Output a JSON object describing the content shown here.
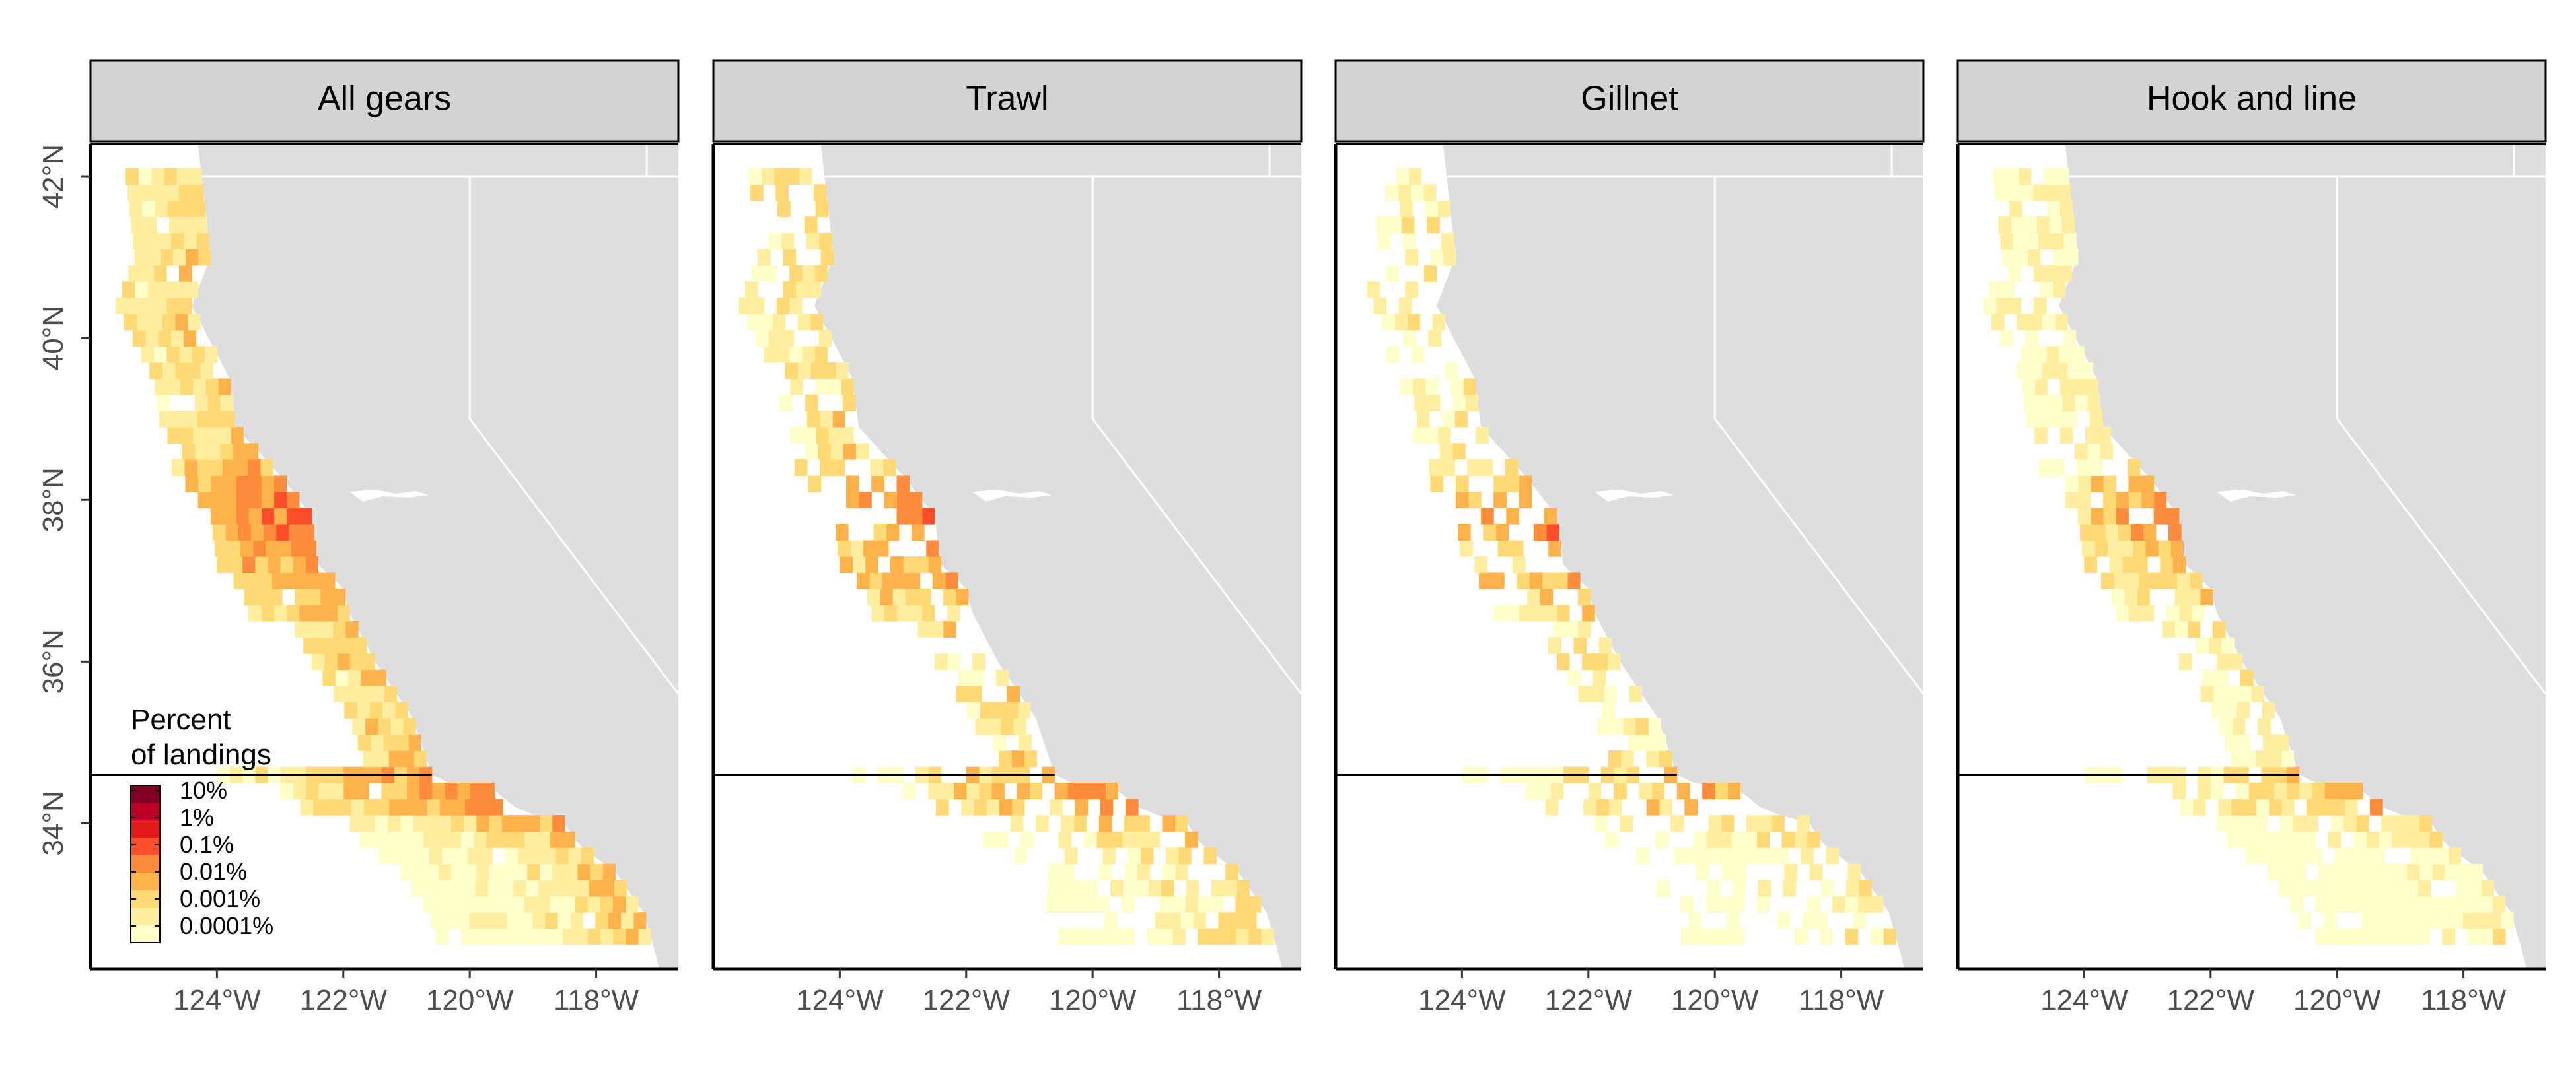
{
  "map": {
    "panels": [
      {
        "title": "All gears"
      },
      {
        "title": "Trawl"
      },
      {
        "title": "Gillnet"
      },
      {
        "title": "Hook and line"
      }
    ],
    "x_ticks": [
      "124°W",
      "122°W",
      "120°W",
      "118°W"
    ],
    "y_ticks": [
      "42°N",
      "40°N",
      "38°N",
      "36°N",
      "34°N"
    ],
    "x_tick_values": [
      -124,
      -122,
      -120,
      -118
    ],
    "y_tick_values": [
      42,
      40,
      38,
      36,
      34
    ],
    "extent": {
      "lon": [
        -126,
        -116.7
      ],
      "lat": [
        32.2,
        42.4
      ]
    },
    "reference_line_lat": 34.6,
    "legend": {
      "title_line1": "Percent",
      "title_line2": "of landings",
      "labels": [
        "10%",
        "1%",
        "0.1%",
        "0.01%",
        "0.001%",
        "0.0001%"
      ]
    },
    "colors": {
      "land": "#dedede",
      "ocean": "#ffffff",
      "scale": [
        "#ffffcc",
        "#ffeda0",
        "#fed976",
        "#feb24c",
        "#fd8d3c",
        "#fc4e2a",
        "#e31a1c",
        "#bd0026",
        "#800026"
      ]
    },
    "grid_density": [
      0.97,
      0.62,
      0.5,
      0.8
    ]
  }
}
